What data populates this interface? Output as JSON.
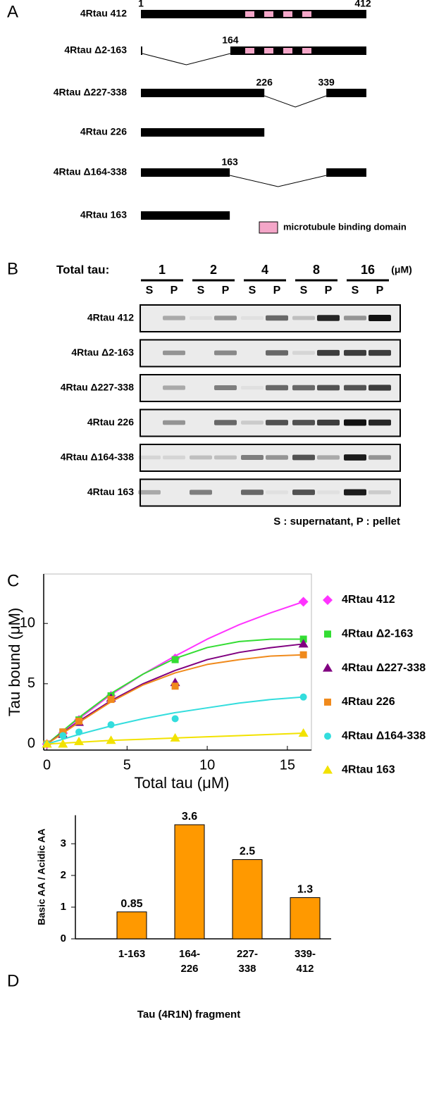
{
  "panel_a": {
    "letter": "A",
    "constructs": [
      {
        "name": "4Rtau 412",
        "segments": [
          [
            1,
            412
          ]
        ],
        "labels": [
          1,
          412
        ],
        "mtbd": true
      },
      {
        "name": "4Rtau Δ2-163",
        "segments": [
          [
            1,
            1
          ],
          [
            164,
            412
          ]
        ],
        "labels": [
          164
        ],
        "mtbd": true
      },
      {
        "name": "4Rtau Δ227-338",
        "segments": [
          [
            1,
            226
          ],
          [
            339,
            412
          ]
        ],
        "labels": [
          226,
          339
        ],
        "mtbd": false
      },
      {
        "name": "4Rtau 226",
        "segments": [
          [
            1,
            226
          ]
        ],
        "mtbd": false
      },
      {
        "name": "4Rtau Δ164-338",
        "segments": [
          [
            1,
            163
          ],
          [
            339,
            412
          ]
        ],
        "labels": [
          163
        ],
        "mtbd": false
      },
      {
        "name": "4Rtau 163",
        "segments": [
          [
            1,
            163
          ]
        ],
        "mtbd": false
      }
    ],
    "legend": "microtubule binding domain"
  },
  "panel_b": {
    "letter": "B",
    "header": "Total tau:",
    "concentrations": [
      1,
      2,
      4,
      8,
      16
    ],
    "unit": "(μM)",
    "lane_labels": [
      "S",
      "P"
    ],
    "rows": [
      {
        "name": "4Rtau 412",
        "intensity": [
          0,
          0.3,
          0.05,
          0.4,
          0.05,
          0.6,
          0.2,
          0.9,
          0.4,
          1.0
        ]
      },
      {
        "name": "4Rtau Δ2-163",
        "intensity": [
          0,
          0.4,
          0,
          0.45,
          0,
          0.6,
          0.1,
          0.8,
          0.8,
          0.8
        ]
      },
      {
        "name": "4Rtau Δ227-338",
        "intensity": [
          0,
          0.3,
          0,
          0.5,
          0.05,
          0.6,
          0.6,
          0.7,
          0.7,
          0.8
        ]
      },
      {
        "name": "4Rtau 226",
        "intensity": [
          0,
          0.4,
          0,
          0.6,
          0.15,
          0.7,
          0.7,
          0.8,
          1.0,
          0.9
        ]
      },
      {
        "name": "4Rtau Δ164-338",
        "intensity": [
          0.1,
          0.1,
          0.2,
          0.2,
          0.5,
          0.4,
          0.7,
          0.3,
          0.95,
          0.4
        ]
      },
      {
        "name": "4Rtau 163",
        "intensity": [
          0.3,
          0,
          0.5,
          0,
          0.6,
          0.05,
          0.7,
          0.05,
          0.95,
          0.15
        ]
      }
    ],
    "caption": "S : supernatant, P : pellet"
  },
  "chart_data": [
    {
      "type": "scatter",
      "panel": "C",
      "xlabel": "Total tau (μM)",
      "ylabel": "Tau bound (μM)",
      "x": [
        0,
        1,
        2,
        4,
        8,
        16
      ],
      "xlim": [
        -0.2,
        16.5
      ],
      "ylim": [
        -0.5,
        14.1
      ],
      "xticks": [
        0,
        5,
        10,
        15
      ],
      "yticks": [
        0,
        5,
        10
      ],
      "fit_x": [
        0,
        2,
        4,
        6,
        8,
        10,
        12,
        14,
        16
      ],
      "series": [
        {
          "name": "4Rtau 412",
          "color": "#ff33ff",
          "marker": "diamond",
          "values": [
            0,
            0.9,
            2.0,
            4.0,
            7.1,
            11.8
          ],
          "fit": [
            0,
            2.1,
            4.1,
            5.8,
            7.3,
            8.7,
            9.9,
            10.9,
            11.8
          ]
        },
        {
          "name": "4Rtau Δ2-163",
          "color": "#33dd33",
          "marker": "square",
          "values": [
            0,
            1.0,
            2.0,
            4.0,
            7.0,
            8.7
          ],
          "fit": [
            0,
            2.2,
            4.2,
            5.8,
            7.1,
            8.0,
            8.5,
            8.7,
            8.7
          ]
        },
        {
          "name": "4Rtau Δ227-338",
          "color": "#800080",
          "marker": "triangle",
          "values": [
            0,
            0.8,
            1.8,
            3.8,
            5.1,
            8.3
          ],
          "fit": [
            0,
            1.9,
            3.6,
            5.0,
            6.1,
            7.0,
            7.6,
            8.0,
            8.3
          ]
        },
        {
          "name": "4Rtau 226",
          "color": "#f08a1c",
          "marker": "square",
          "values": [
            0,
            1.0,
            1.9,
            3.7,
            4.8,
            7.4
          ],
          "fit": [
            0,
            1.8,
            3.5,
            4.9,
            5.9,
            6.6,
            7.0,
            7.3,
            7.4
          ]
        },
        {
          "name": "4Rtau Δ164-338",
          "color": "#33dddd",
          "marker": "circle",
          "values": [
            0,
            0.7,
            1.0,
            1.6,
            2.1,
            3.9
          ],
          "fit": [
            0,
            0.8,
            1.5,
            2.1,
            2.6,
            3.0,
            3.4,
            3.7,
            3.9
          ]
        },
        {
          "name": "4Rtau 163",
          "color": "#f2e200",
          "marker": "triangle",
          "values": [
            0,
            0,
            0.2,
            0.3,
            0.5,
            0.9
          ],
          "fit": [
            0,
            0.15,
            0.3,
            0.4,
            0.5,
            0.6,
            0.7,
            0.8,
            0.9
          ]
        }
      ]
    },
    {
      "type": "bar",
      "panel": "D",
      "xlabel": "Tau (4R1N) fragment",
      "ylabel": "Basic AA / Acidic AA",
      "categories": [
        "1-163",
        "164-\n226",
        "227-\n338",
        "339-\n412"
      ],
      "values": [
        0.85,
        3.6,
        2.5,
        1.3
      ],
      "color": "#ff9900",
      "ylim": [
        0,
        3.9
      ],
      "yticks": [
        0,
        1,
        2,
        3
      ]
    }
  ]
}
